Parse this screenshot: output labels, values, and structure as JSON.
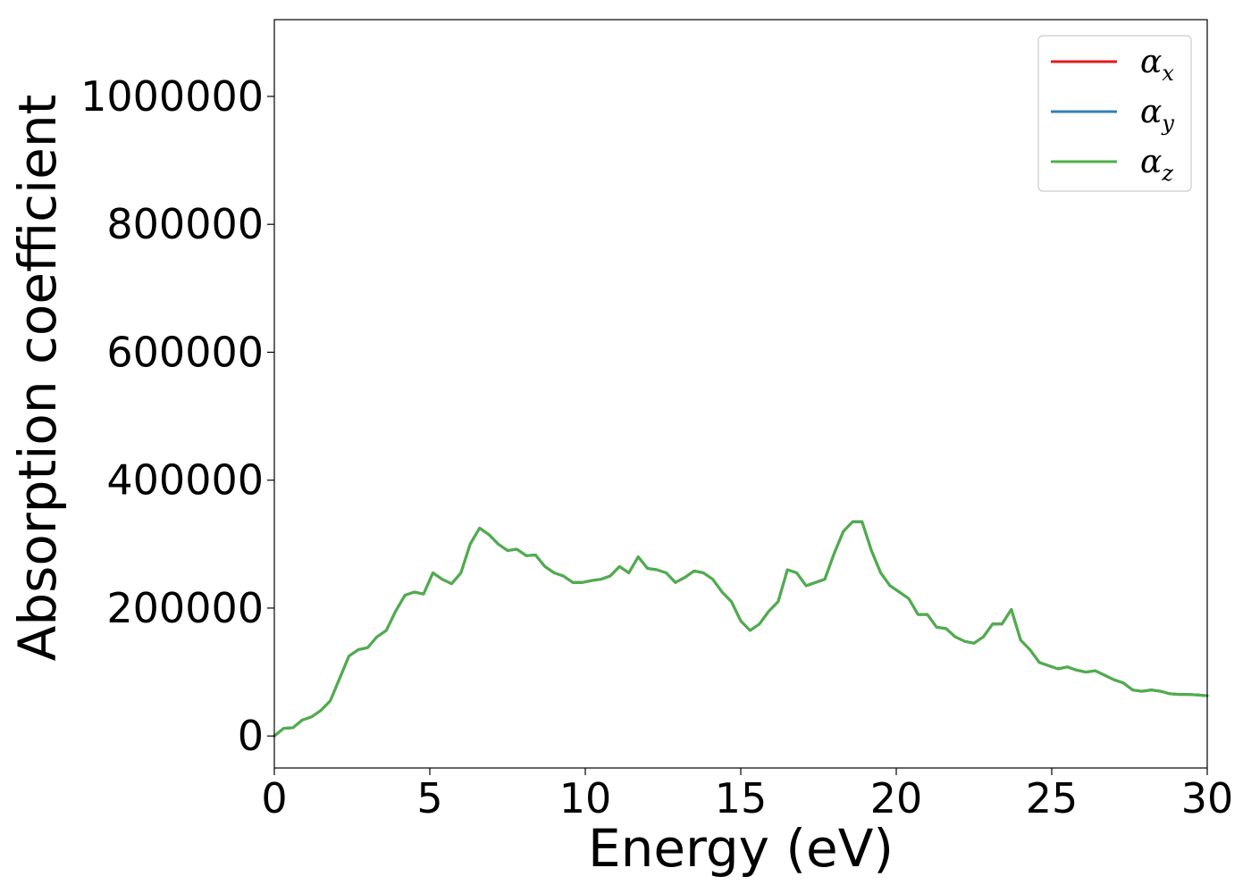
{
  "chart_data": {
    "type": "line",
    "title": "",
    "xlabel": "Energy (eV)",
    "ylabel": "Absorption coefficient",
    "xlim": [
      0,
      30
    ],
    "ylim": [
      -50000,
      1120000
    ],
    "xticks": [
      0,
      5,
      10,
      15,
      20,
      25,
      30
    ],
    "xtick_labels": [
      "0",
      "5",
      "10",
      "15",
      "20",
      "25",
      "30"
    ],
    "yticks": [
      0,
      200000,
      400000,
      600000,
      800000,
      1000000
    ],
    "ytick_labels": [
      "0",
      "200000",
      "400000",
      "600000",
      "800000",
      "1000000"
    ],
    "grid": false,
    "legend_position": "top-right",
    "series": [
      {
        "name": "α",
        "sub": "x",
        "color": "#e41a1c",
        "x": [
          0,
          0.3,
          0.6,
          0.9,
          1.2,
          1.5,
          1.8,
          2.1,
          2.4,
          2.7,
          3.0,
          3.3,
          3.6,
          3.9,
          4.2,
          4.5,
          4.8,
          5.1,
          5.4,
          5.7,
          6.0,
          6.3,
          6.6,
          6.9,
          7.2,
          7.5,
          7.8,
          8.1,
          8.4,
          8.7,
          9.0,
          9.3,
          9.6,
          9.9,
          10.2,
          10.5,
          10.8,
          11.1,
          11.4,
          11.7,
          12.0,
          12.3,
          12.6,
          12.9,
          13.2,
          13.5,
          13.8,
          14.1,
          14.4,
          14.7,
          15.0,
          15.3,
          15.6,
          15.9,
          16.2,
          16.5,
          16.8,
          17.1,
          17.4,
          17.7,
          18.0,
          18.3,
          18.6,
          18.9,
          19.2,
          19.5,
          19.8,
          20.1,
          20.4,
          20.7,
          21.0,
          21.3,
          21.6,
          21.9,
          22.2,
          22.5,
          22.8,
          23.1,
          23.4,
          23.7,
          24.0,
          24.3,
          24.6,
          24.9,
          25.2,
          25.5,
          25.8,
          26.1,
          26.4,
          26.7,
          27.0,
          27.3,
          27.6,
          27.9,
          28.2,
          28.5,
          28.8,
          29.1,
          29.4,
          29.7,
          30.0
        ],
        "y": [
          0,
          12000,
          13000,
          25000,
          30000,
          40000,
          55000,
          90000,
          125000,
          135000,
          138000,
          155000,
          165000,
          195000,
          220000,
          225000,
          222000,
          255000,
          245000,
          238000,
          255000,
          300000,
          325000,
          315000,
          300000,
          290000,
          292000,
          282000,
          283000,
          265000,
          255000,
          250000,
          240000,
          240000,
          243000,
          245000,
          250000,
          265000,
          255000,
          280000,
          262000,
          260000,
          255000,
          240000,
          248000,
          258000,
          255000,
          245000,
          225000,
          210000,
          180000,
          165000,
          175000,
          195000,
          210000,
          260000,
          255000,
          235000,
          240000,
          245000,
          285000,
          320000,
          335000,
          335000,
          290000,
          255000,
          235000,
          225000,
          215000,
          190000,
          190000,
          170000,
          168000,
          155000,
          148000,
          145000,
          155000,
          175000,
          175000,
          198000,
          150000,
          135000,
          115000,
          110000,
          105000,
          108000,
          103000,
          100000,
          102000,
          95000,
          88000,
          83000,
          72000,
          70000,
          72000,
          70000,
          66000,
          65000,
          65000,
          64000,
          63000
        ]
      },
      {
        "name": "α",
        "sub": "y",
        "color": "#377eb8",
        "x": [
          0,
          0.3,
          0.6,
          0.9,
          1.2,
          1.5,
          1.8,
          2.1,
          2.4,
          2.7,
          3.0,
          3.3,
          3.6,
          3.9,
          4.2,
          4.5,
          4.8,
          5.1,
          5.4,
          5.7,
          6.0,
          6.3,
          6.6,
          6.9,
          7.2,
          7.5,
          7.8,
          8.1,
          8.4,
          8.7,
          9.0,
          9.3,
          9.6,
          9.9,
          10.2,
          10.5,
          10.8,
          11.1,
          11.4,
          11.7,
          12.0,
          12.3,
          12.6,
          12.9,
          13.2,
          13.5,
          13.8,
          14.1,
          14.4,
          14.7,
          15.0,
          15.3,
          15.6,
          15.9,
          16.2,
          16.5,
          16.8,
          17.1,
          17.4,
          17.7,
          18.0,
          18.3,
          18.6,
          18.9,
          19.2,
          19.5,
          19.8,
          20.1,
          20.4,
          20.7,
          21.0,
          21.3,
          21.6,
          21.9,
          22.2,
          22.5,
          22.8,
          23.1,
          23.4,
          23.7,
          24.0,
          24.3,
          24.6,
          24.9,
          25.2,
          25.5,
          25.8,
          26.1,
          26.4,
          26.7,
          27.0,
          27.3,
          27.6,
          27.9,
          28.2,
          28.5,
          28.8,
          29.1,
          29.4,
          29.7,
          30.0
        ],
        "y": [
          0,
          12000,
          13000,
          25000,
          30000,
          40000,
          55000,
          90000,
          125000,
          135000,
          138000,
          155000,
          165000,
          195000,
          220000,
          225000,
          222000,
          255000,
          245000,
          238000,
          255000,
          300000,
          325000,
          315000,
          300000,
          290000,
          292000,
          282000,
          283000,
          265000,
          255000,
          250000,
          240000,
          240000,
          243000,
          245000,
          250000,
          265000,
          255000,
          280000,
          262000,
          260000,
          255000,
          240000,
          248000,
          258000,
          255000,
          245000,
          225000,
          210000,
          180000,
          165000,
          175000,
          195000,
          210000,
          260000,
          255000,
          235000,
          240000,
          245000,
          285000,
          320000,
          335000,
          335000,
          290000,
          255000,
          235000,
          225000,
          215000,
          190000,
          190000,
          170000,
          168000,
          155000,
          148000,
          145000,
          155000,
          175000,
          175000,
          198000,
          150000,
          135000,
          115000,
          110000,
          105000,
          108000,
          103000,
          100000,
          102000,
          95000,
          88000,
          83000,
          72000,
          70000,
          72000,
          70000,
          66000,
          65000,
          65000,
          64000,
          63000
        ]
      },
      {
        "name": "α",
        "sub": "z",
        "color": "#4daf4a",
        "x": [
          0,
          0.3,
          0.6,
          0.9,
          1.2,
          1.5,
          1.8,
          2.1,
          2.4,
          2.7,
          3.0,
          3.3,
          3.6,
          3.9,
          4.2,
          4.5,
          4.8,
          5.1,
          5.4,
          5.7,
          6.0,
          6.3,
          6.6,
          6.9,
          7.2,
          7.5,
          7.8,
          8.1,
          8.4,
          8.7,
          9.0,
          9.3,
          9.6,
          9.9,
          10.2,
          10.5,
          10.8,
          11.1,
          11.4,
          11.7,
          12.0,
          12.3,
          12.6,
          12.9,
          13.2,
          13.5,
          13.8,
          14.1,
          14.4,
          14.7,
          15.0,
          15.3,
          15.6,
          15.9,
          16.2,
          16.5,
          16.8,
          17.1,
          17.4,
          17.7,
          18.0,
          18.3,
          18.6,
          18.9,
          19.2,
          19.5,
          19.8,
          20.1,
          20.4,
          20.7,
          21.0,
          21.3,
          21.6,
          21.9,
          22.2,
          22.5,
          22.8,
          23.1,
          23.4,
          23.7,
          24.0,
          24.3,
          24.6,
          24.9,
          25.2,
          25.5,
          25.8,
          26.1,
          26.4,
          26.7,
          27.0,
          27.3,
          27.6,
          27.9,
          28.2,
          28.5,
          28.8,
          29.1,
          29.4,
          29.7,
          30.0
        ],
        "y": [
          0,
          12000,
          13000,
          25000,
          30000,
          40000,
          55000,
          90000,
          125000,
          135000,
          138000,
          155000,
          165000,
          195000,
          220000,
          225000,
          222000,
          255000,
          245000,
          238000,
          255000,
          300000,
          325000,
          315000,
          300000,
          290000,
          292000,
          282000,
          283000,
          265000,
          255000,
          250000,
          240000,
          240000,
          243000,
          245000,
          250000,
          265000,
          255000,
          280000,
          262000,
          260000,
          255000,
          240000,
          248000,
          258000,
          255000,
          245000,
          225000,
          210000,
          180000,
          165000,
          175000,
          195000,
          210000,
          260000,
          255000,
          235000,
          240000,
          245000,
          285000,
          320000,
          335000,
          335000,
          290000,
          255000,
          235000,
          225000,
          215000,
          190000,
          190000,
          170000,
          168000,
          155000,
          148000,
          145000,
          155000,
          175000,
          175000,
          198000,
          150000,
          135000,
          115000,
          110000,
          105000,
          108000,
          103000,
          100000,
          102000,
          95000,
          88000,
          83000,
          72000,
          70000,
          72000,
          70000,
          66000,
          65000,
          65000,
          64000,
          63000
        ]
      }
    ]
  }
}
